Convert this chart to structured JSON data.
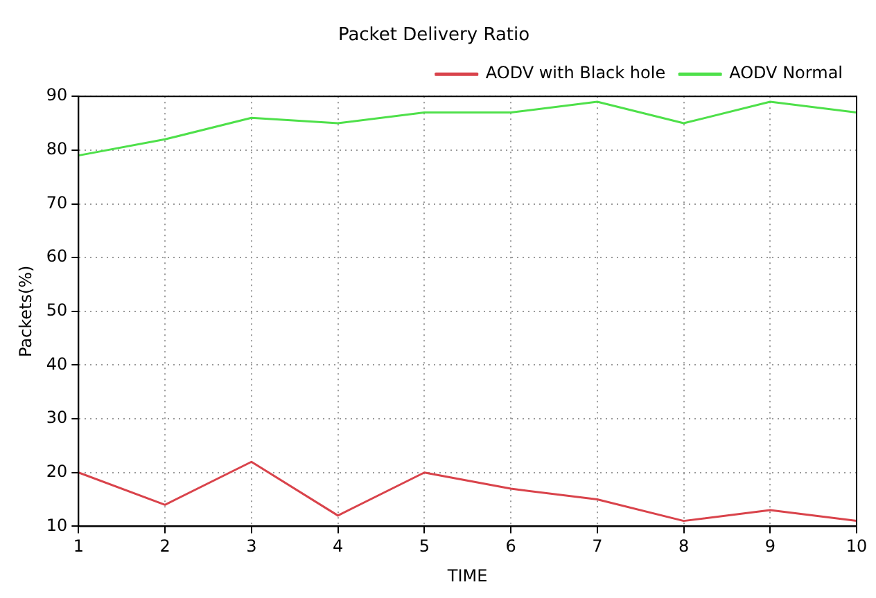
{
  "chart_data": {
    "type": "line",
    "title": "Packet Delivery Ratio",
    "xlabel": "TIME",
    "ylabel": "Packets(%)",
    "x": [
      1,
      2,
      3,
      4,
      5,
      6,
      7,
      8,
      9,
      10
    ],
    "series": [
      {
        "name": "AODV with Black hole",
        "color": "#d9434b",
        "values": [
          20,
          14,
          22,
          12,
          20,
          17,
          15,
          11,
          13,
          11
        ]
      },
      {
        "name": "AODV Normal",
        "color": "#4ee04a",
        "values": [
          79,
          82,
          86,
          85,
          87,
          87,
          89,
          85,
          89,
          87
        ]
      }
    ],
    "xlim": [
      1,
      10
    ],
    "xticks": [
      1,
      2,
      3,
      4,
      5,
      6,
      7,
      8,
      9,
      10
    ],
    "ylim": [
      10,
      90
    ],
    "yticks": [
      10,
      20,
      30,
      40,
      50,
      60,
      70,
      80,
      90
    ],
    "grid": true,
    "legend": "top right",
    "marker": "none",
    "line_style": "solid"
  }
}
